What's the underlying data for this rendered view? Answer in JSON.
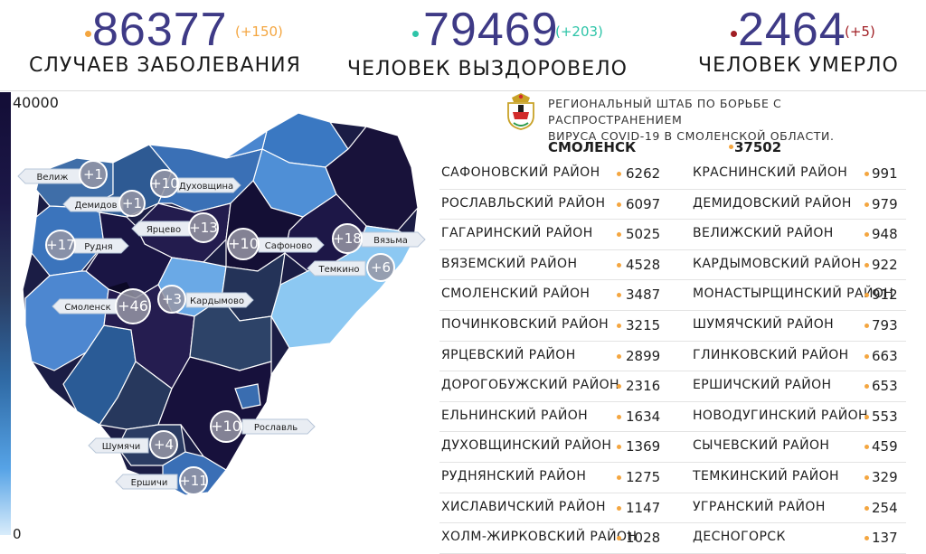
{
  "stats": {
    "cases": {
      "value": "86377",
      "delta": "(+150)",
      "label": "СЛУЧАЕВ ЗАБОЛЕВАНИЯ",
      "dot_color": "#f4a640",
      "delta_color": "#f4a640"
    },
    "recovered": {
      "value": "79469",
      "delta": "(+203)",
      "label": "ЧЕЛОВЕК ВЫЗДОРОВЕЛО",
      "dot_color": "#2ec4a8",
      "delta_color": "#2ec4a8"
    },
    "deaths": {
      "value": "2464",
      "delta": "(+5)",
      "label": "ЧЕЛОВЕК УМЕРЛО",
      "dot_color": "#a01e24",
      "delta_color": "#a01e24"
    }
  },
  "legend": {
    "max": "40000",
    "min": "0"
  },
  "map_labels": [
    {
      "name": "Велиж",
      "delta": "+1"
    },
    {
      "name": "Духовщина",
      "delta": "+10"
    },
    {
      "name": "Демидов",
      "delta": "+1"
    },
    {
      "name": "Ярцево",
      "delta": "+13"
    },
    {
      "name": "Рудня",
      "delta": "+17"
    },
    {
      "name": "Сафоново",
      "delta": "+10"
    },
    {
      "name": "Вязьма",
      "delta": "+18"
    },
    {
      "name": "Темкино",
      "delta": "+6"
    },
    {
      "name": "Смоленск",
      "delta": "+46"
    },
    {
      "name": "Кардымово",
      "delta": "+3"
    },
    {
      "name": "Рославль",
      "delta": "+10"
    },
    {
      "name": "Шумячи",
      "delta": "+4"
    },
    {
      "name": "Ершичи",
      "delta": "+11"
    }
  ],
  "headquarters": {
    "line1": "РЕГИОНАЛЬНЫЙ ШТАБ ПО БОРЬБЕ С РАСПРОСТРАНЕНИЕМ",
    "line2": "ВИРУСА COVID-19 В СМОЛЕНСКОЙ ОБЛАСТИ."
  },
  "capital": {
    "name": "СМОЛЕНСК",
    "count": "37502"
  },
  "districts_left": [
    {
      "name": "САФОНОВСКИЙ РАЙОН",
      "value": "6262"
    },
    {
      "name": "РОСЛАВЛЬСКИЙ РАЙОН",
      "value": "6097"
    },
    {
      "name": "ГАГАРИНСКИЙ РАЙОН",
      "value": "5025"
    },
    {
      "name": "ВЯЗЕМСКИЙ РАЙОН",
      "value": "4528"
    },
    {
      "name": "СМОЛЕНСКИЙ РАЙОН",
      "value": "3487"
    },
    {
      "name": "ПОЧИНКОВСКИЙ РАЙОН",
      "value": "3215"
    },
    {
      "name": "ЯРЦЕВСКИЙ РАЙОН",
      "value": "2899"
    },
    {
      "name": "ДОРОГОБУЖСКИЙ РАЙОН",
      "value": "2316"
    },
    {
      "name": "ЕЛЬНИНСКИЙ РАЙОН",
      "value": "1634"
    },
    {
      "name": "ДУХОВЩИНСКИЙ РАЙОН",
      "value": "1369"
    },
    {
      "name": "РУДНЯНСКИЙ РАЙОН",
      "value": "1275"
    },
    {
      "name": "ХИСЛАВИЧСКИЙ РАЙОН",
      "value": "1147"
    },
    {
      "name": "ХОЛМ-ЖИРКОВСКИЙ РАЙОН",
      "value": "1028"
    }
  ],
  "districts_right": [
    {
      "name": "КРАСНИНСКИЙ РАЙОН",
      "value": "991"
    },
    {
      "name": "ДЕМИДОВСКИЙ РАЙОН",
      "value": "979"
    },
    {
      "name": "ВЕЛИЖСКИЙ РАЙОН",
      "value": "948"
    },
    {
      "name": "КАРДЫМОВСКИЙ РАЙОН",
      "value": "922"
    },
    {
      "name": "МОНАСТЫРЩИНСКИЙ РАЙОН",
      "value": "912"
    },
    {
      "name": "ШУМЯЧСКИЙ РАЙОН",
      "value": "793"
    },
    {
      "name": "ГЛИНКОВСКИЙ РАЙОН",
      "value": "663"
    },
    {
      "name": "ЕРШИЧСКИЙ РАЙОН",
      "value": "653"
    },
    {
      "name": "НОВОДУГИНСКИЙ РАЙОН",
      "value": "553"
    },
    {
      "name": "СЫЧЕВСКИЙ РАЙОН",
      "value": "459"
    },
    {
      "name": "ТЕМКИНСКИЙ РАЙОН",
      "value": "329"
    },
    {
      "name": "УГРАНСКИЙ РАЙОН",
      "value": "254"
    },
    {
      "name": "ДЕСНОГОРСК",
      "value": "137"
    }
  ]
}
